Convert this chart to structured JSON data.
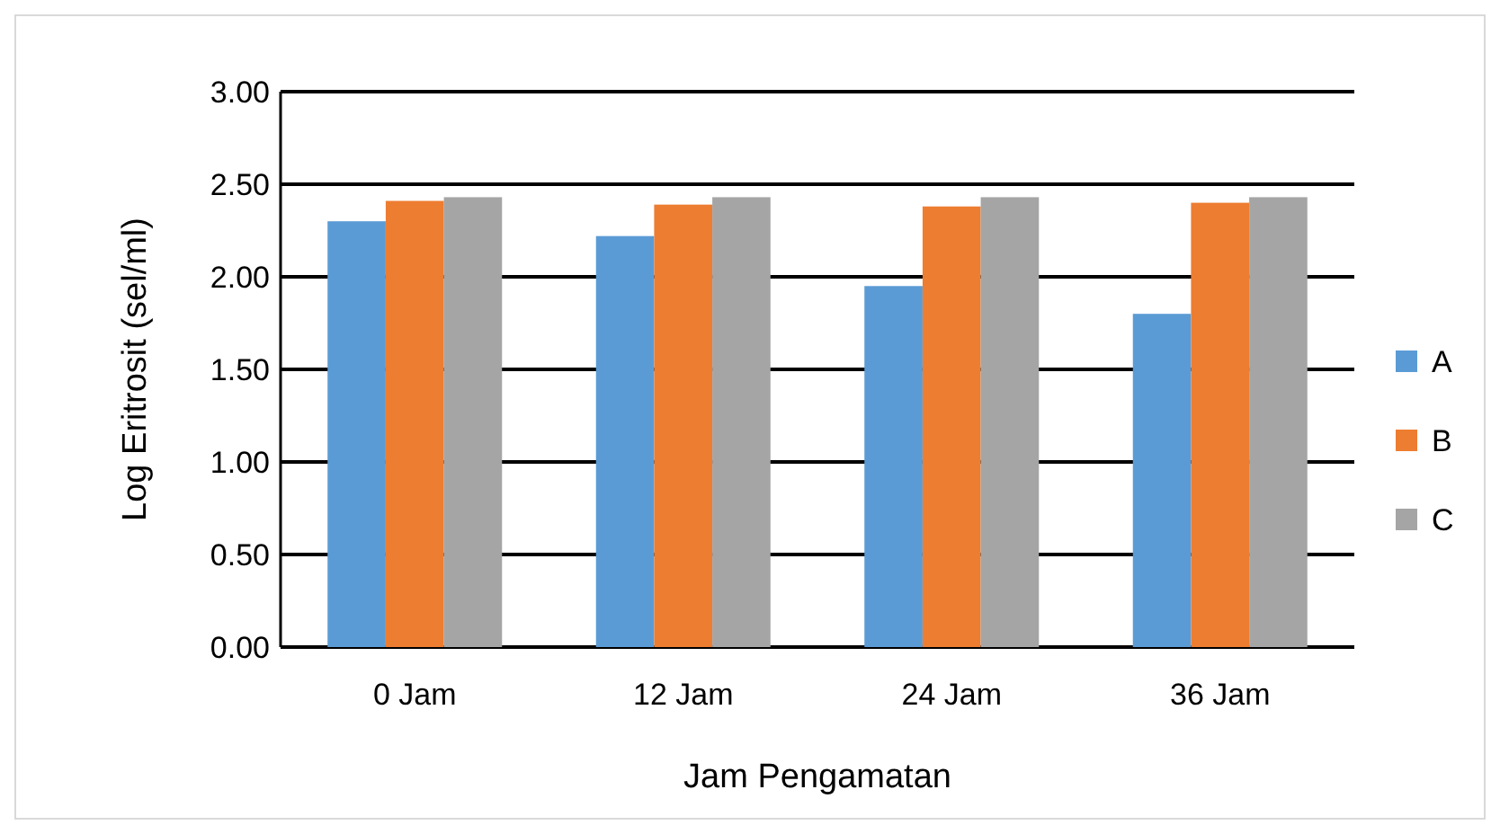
{
  "chart_data": {
    "type": "bar",
    "xlabel": "Jam Pengamatan",
    "ylabel": "Log Eritrosit (sel/ml)",
    "categories": [
      "0 Jam",
      "12 Jam",
      "24 Jam",
      "36 Jam"
    ],
    "series": [
      {
        "name": "A",
        "color": "#5b9bd5",
        "values": [
          2.3,
          2.22,
          1.95,
          1.8
        ]
      },
      {
        "name": "B",
        "color": "#ed7d31",
        "values": [
          2.41,
          2.39,
          2.38,
          2.4
        ]
      },
      {
        "name": "C",
        "color": "#a5a5a5",
        "values": [
          2.43,
          2.43,
          2.43,
          2.43
        ]
      }
    ],
    "ylim": [
      0,
      3
    ],
    "yticks": [
      {
        "value": 0,
        "label": "0.00"
      },
      {
        "value": 0.5,
        "label": "0.50"
      },
      {
        "value": 1,
        "label": "1.00"
      },
      {
        "value": 1.5,
        "label": "1.50"
      },
      {
        "value": 2,
        "label": "2.00"
      },
      {
        "value": 2.5,
        "label": "2.50"
      },
      {
        "value": 3,
        "label": "3.00"
      }
    ],
    "grid": "y",
    "legend": "right"
  }
}
